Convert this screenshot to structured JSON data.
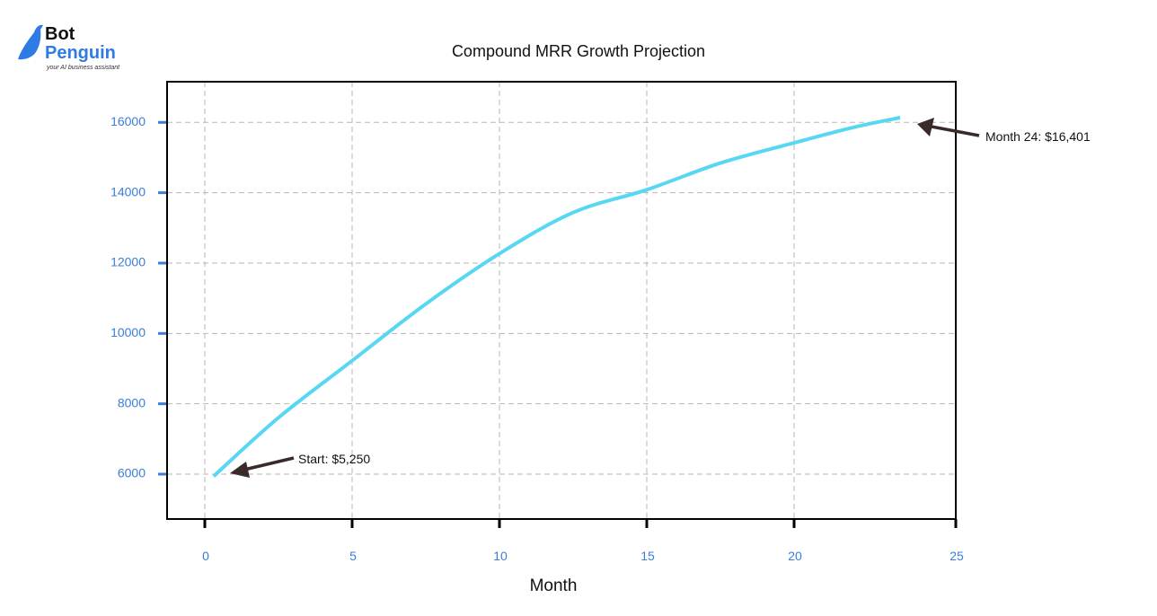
{
  "logo": {
    "line1": "Bot",
    "line2": "Penguin",
    "tagline": "your AI business assistant",
    "brand_color": "#2f7be6"
  },
  "chart_data": {
    "type": "line",
    "title": "Compound MRR Growth Projection",
    "xlabel": "Month",
    "ylabel": "",
    "xlim": [
      -1.3,
      25.5
    ],
    "ylim": [
      4730,
      17100
    ],
    "x_ticks": [
      0,
      5,
      10,
      15,
      20,
      25
    ],
    "y_ticks": [
      6000,
      8000,
      10000,
      12000,
      14000,
      16000
    ],
    "grid": true,
    "series": [
      {
        "color": "#57d7f2",
        "x": [
          0.3,
          2.5,
          5,
          7.5,
          10,
          12.5,
          15,
          17.5,
          20,
          22,
          23.6
        ],
        "y": [
          5940,
          7605,
          9224,
          10837,
          12268,
          13437,
          14085,
          14844,
          15418,
          15856,
          16135
        ]
      }
    ],
    "annotations": [
      {
        "text": "Start: $5,250",
        "x": 0,
        "y": 5250
      },
      {
        "text": "Month 24: $16,401",
        "x": 24,
        "y": 16401
      }
    ],
    "colors": {
      "tick_labels": "#3b7dd8",
      "arrow": "#3b2a2a",
      "grid": "#bdb5b5"
    }
  }
}
